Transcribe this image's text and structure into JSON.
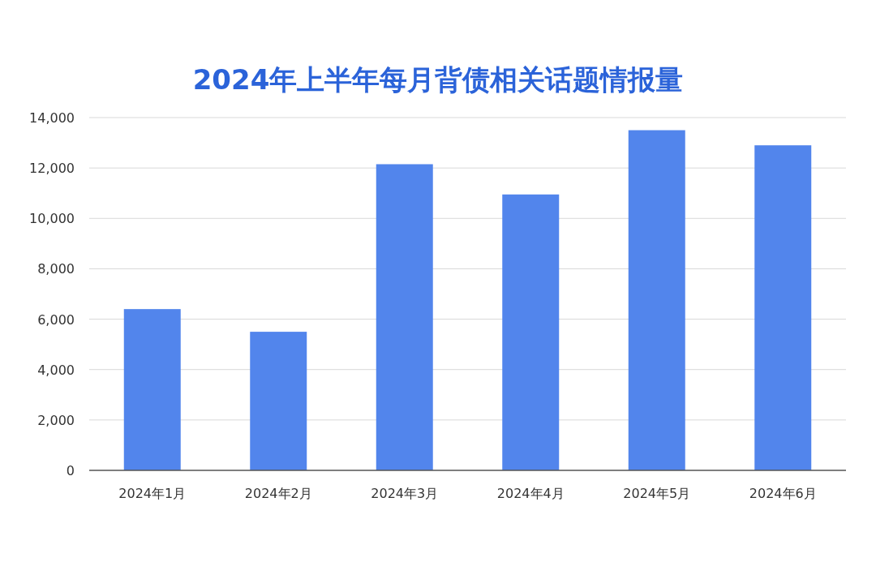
{
  "chart_data": {
    "type": "bar",
    "title": "2024年上半年每月背债相关话题情报量",
    "categories": [
      "2024年1月",
      "2024年2月",
      "2024年3月",
      "2024年4月",
      "2024年5月",
      "2024年6月"
    ],
    "values": [
      6400,
      5500,
      12150,
      10950,
      13500,
      12900
    ],
    "color": "#5285ec",
    "ylim": [
      0,
      14000
    ],
    "yticks": [
      {
        "value": 0,
        "label": "0"
      },
      {
        "value": 2000,
        "label": "2,000"
      },
      {
        "value": 4000,
        "label": "4,000"
      },
      {
        "value": 6000,
        "label": "6,000"
      },
      {
        "value": 8000,
        "label": "8,000"
      },
      {
        "value": 10000,
        "label": "10,000"
      },
      {
        "value": 12000,
        "label": "12,000"
      },
      {
        "value": 14000,
        "label": "14,000"
      }
    ],
    "grid": "y"
  }
}
